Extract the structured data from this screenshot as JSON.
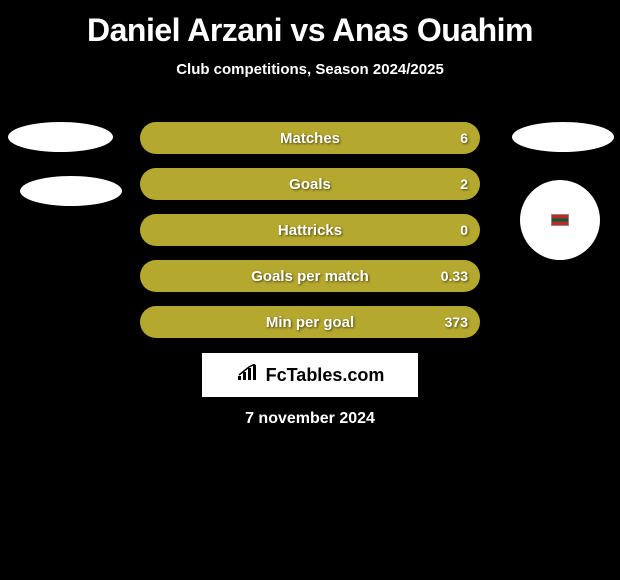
{
  "title": "Daniel Arzani vs Anas Ouahim",
  "subtitle": "Club competitions, Season 2024/2025",
  "date": "7 november 2024",
  "logo_text": "FcTables.com",
  "colors": {
    "background": "#000000",
    "bar_primary": "#b5a82e",
    "bar_secondary": "#9a8f28",
    "text": "#ffffff",
    "avatar_bg": "#ffffff"
  },
  "stats": [
    {
      "label": "Matches",
      "left_value": "",
      "right_value": "6",
      "left_pct": 0,
      "right_pct": 100,
      "left_color": "#9a8f28",
      "right_color": "#b5a82e"
    },
    {
      "label": "Goals",
      "left_value": "",
      "right_value": "2",
      "left_pct": 0,
      "right_pct": 100,
      "left_color": "#9a8f28",
      "right_color": "#b5a82e"
    },
    {
      "label": "Hattricks",
      "left_value": "",
      "right_value": "0",
      "left_pct": 0,
      "right_pct": 100,
      "left_color": "#9a8f28",
      "right_color": "#b5a82e"
    },
    {
      "label": "Goals per match",
      "left_value": "",
      "right_value": "0.33",
      "left_pct": 0,
      "right_pct": 100,
      "left_color": "#9a8f28",
      "right_color": "#b5a82e"
    },
    {
      "label": "Min per goal",
      "left_value": "",
      "right_value": "373",
      "left_pct": 0,
      "right_pct": 100,
      "left_color": "#9a8f28",
      "right_color": "#b5a82e"
    }
  ],
  "bar_styling": {
    "height": 32,
    "border_radius": 16,
    "gap": 14,
    "label_fontsize": 15,
    "value_fontsize": 14
  }
}
